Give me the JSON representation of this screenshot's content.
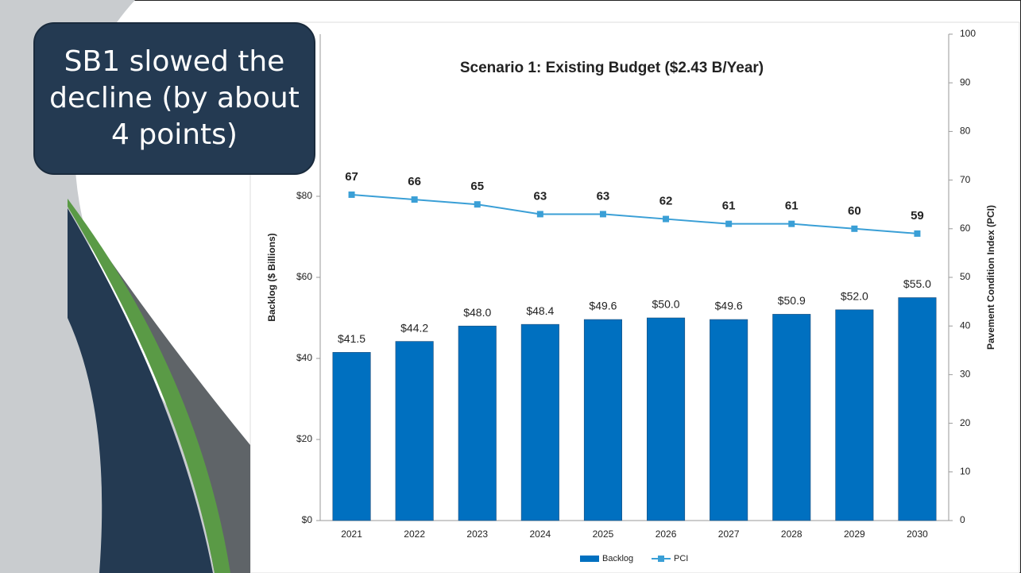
{
  "callout": "SB1 slowed the decline (by about 4 points)",
  "chart_data": {
    "type": "bar",
    "title": "Scenario 1: Existing Budget ($2.43 B/Year)",
    "ylabel": "Backlog ($ Billions)",
    "y2label": "Pavement Condition Index (PCI)",
    "categories": [
      "2021",
      "2022",
      "2023",
      "2024",
      "2025",
      "2026",
      "2027",
      "2028",
      "2029",
      "2030"
    ],
    "series": [
      {
        "name": "Backlog",
        "type": "bar",
        "color": "#0070c0",
        "values": [
          41.5,
          44.2,
          48.0,
          48.4,
          49.6,
          50.0,
          49.6,
          50.9,
          52.0,
          55.0
        ],
        "value_labels": [
          "$41.5",
          "$44.2",
          "$48.0",
          "$48.4",
          "$49.6",
          "$50.0",
          "$49.6",
          "$50.9",
          "$52.0",
          "$55.0"
        ]
      },
      {
        "name": "PCI",
        "type": "line",
        "axis": "y2",
        "color": "#3a9fd6",
        "values": [
          67,
          66,
          65,
          63,
          63,
          62,
          61,
          61,
          60,
          59
        ]
      }
    ],
    "ylim": [
      0,
      120
    ],
    "yticks": [
      {
        "value": 0,
        "label": "$0"
      },
      {
        "value": 20,
        "label": "$20"
      },
      {
        "value": 40,
        "label": "$40"
      },
      {
        "value": 60,
        "label": "$60"
      },
      {
        "value": 80,
        "label": "$80"
      }
    ],
    "y2lim": [
      0,
      100
    ],
    "y2ticks": [
      0,
      10,
      20,
      30,
      40,
      50,
      60,
      70,
      80,
      90,
      100
    ],
    "legend": "bottom"
  }
}
